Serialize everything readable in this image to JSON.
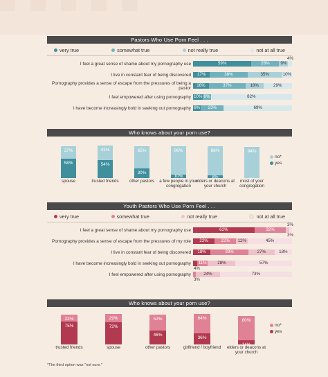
{
  "colors": {
    "teal_dark": "#3f8f9d",
    "teal_mid": "#6fb2be",
    "teal_light": "#a8d0d8",
    "teal_pale": "#d6e8ec",
    "rose_dark": "#b23a50",
    "rose_mid": "#e08296",
    "rose_light": "#eec2cb",
    "rose_pale": "#f6dfe3",
    "band": "#4a4a4a",
    "background": "#f7ece2"
  },
  "chart_data": [
    {
      "type": "bar",
      "orientation": "horizontal-stacked",
      "title": "Pastors Who Use Porn Feel . . .",
      "legend": [
        "very true",
        "somewhat true",
        "not really true",
        "not at all true"
      ],
      "rows": [
        {
          "label": "I feel a great sense of shame about my pornography use",
          "values": [
            59,
            28,
            9,
            4
          ]
        },
        {
          "label": "I live in constant fear of being discovered",
          "values": [
            17,
            38,
            35,
            10
          ]
        },
        {
          "label": "Pornography provides a sense of escape from the pressures of being a pastor",
          "values": [
            16,
            37,
            18,
            29
          ]
        },
        {
          "label": "I feel empowered after using pornography",
          "values": [
            10,
            8,
            0,
            82
          ]
        },
        {
          "label": "I have become increasingly bold in seeking out pornography",
          "values": [
            8,
            23,
            0,
            69
          ]
        }
      ]
    },
    {
      "type": "bar",
      "orientation": "vertical-stacked",
      "title": "Who knows about your porn use?",
      "legend": [
        "no*",
        "yes"
      ],
      "categories": [
        "spouse",
        "trusted friends",
        "other pastors",
        "a few people in your congregation",
        "elders or deacons at your church",
        "most of your congregation"
      ],
      "series": [
        {
          "name": "yes",
          "values": [
            58,
            54,
            30,
            10,
            8,
            0
          ]
        },
        {
          "name": "no*",
          "values": [
            37,
            43,
            65,
            86,
            88,
            94
          ]
        }
      ]
    },
    {
      "type": "bar",
      "orientation": "horizontal-stacked",
      "title": "Youth Pastors Who Use Porn Feel . . .",
      "legend": [
        "very true",
        "somewhat true",
        "not really true",
        "not at all true"
      ],
      "rows": [
        {
          "label": "I feel a great sense of shame about my pornography use",
          "values": [
            62,
            32,
            3,
            3
          ]
        },
        {
          "label": "Pornography provides a sense of escape from the pressures of my role",
          "values": [
            22,
            22,
            12,
            45
          ]
        },
        {
          "label": "I live in constant fear of being discovered",
          "values": [
            18,
            39,
            27,
            18
          ]
        },
        {
          "label": "I have become increasingly bold in seeking out pornography",
          "values": [
            4,
            11,
            28,
            57
          ]
        },
        {
          "label": "I feel empowered after using pornography",
          "values": [
            0,
            3,
            24,
            73
          ]
        }
      ]
    },
    {
      "type": "bar",
      "orientation": "vertical-stacked",
      "title": "Who knows about your porn use?",
      "legend": [
        "no*",
        "yes"
      ],
      "categories": [
        "trusted friends",
        "spouse",
        "other pastors",
        "girlfriend / boyfriend",
        "elders or deacons at your church"
      ],
      "series": [
        {
          "name": "yes",
          "values": [
            75,
            72,
            46,
            36,
            14
          ]
        },
        {
          "name": "no*",
          "values": [
            22,
            29,
            52,
            64,
            80
          ]
        }
      ]
    }
  ],
  "footnote": "*The third option was \"not sure.\""
}
